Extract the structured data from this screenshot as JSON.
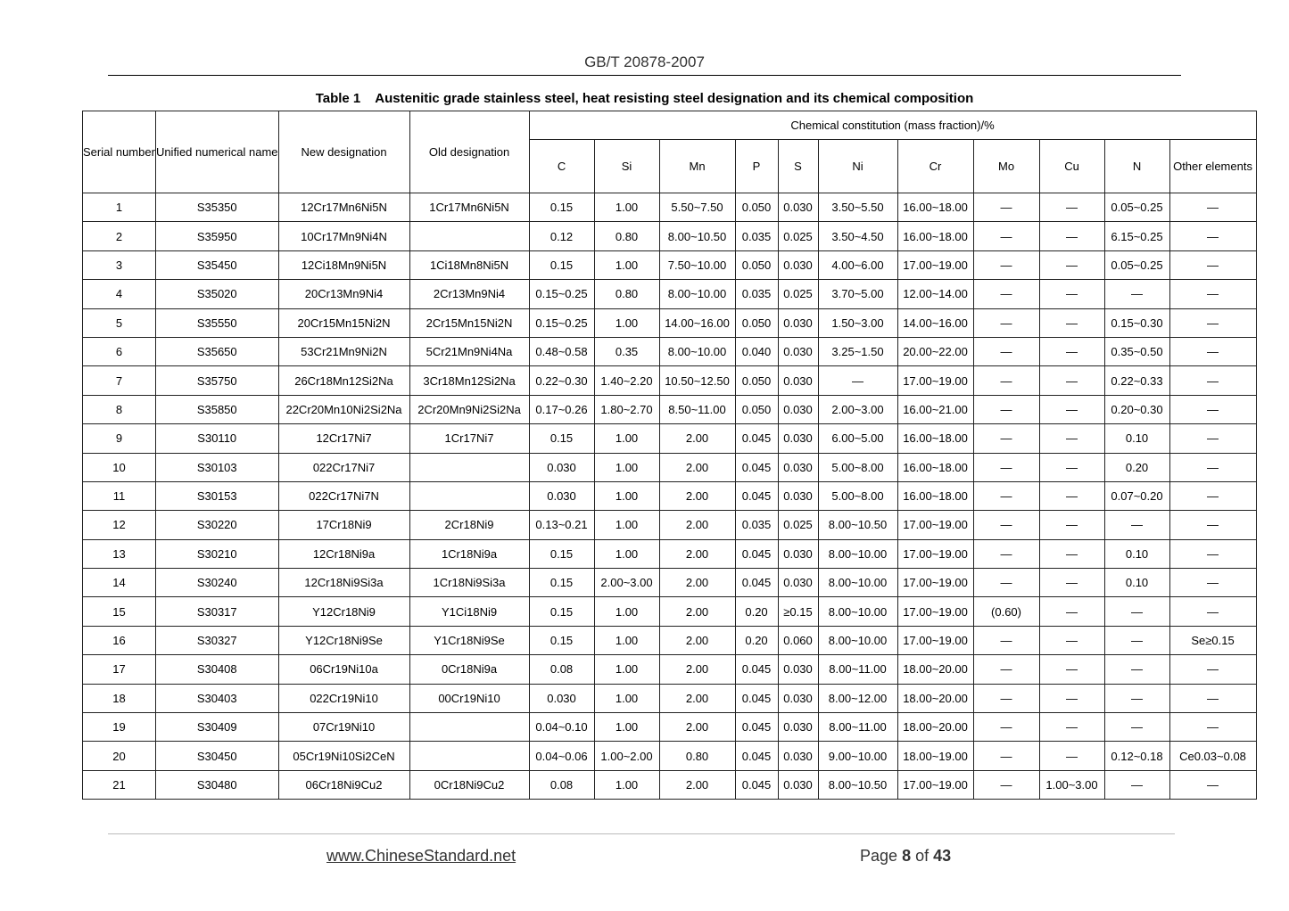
{
  "header": {
    "standard_code": "GB/T 20878-2007"
  },
  "table": {
    "caption_number": "Table 1",
    "caption_title": "Austenitic grade stainless steel, heat resisting steel designation and its chemical composition",
    "headers": {
      "serial_number": "Serial number",
      "unified_name": "Unified numerical name",
      "new_designation": "New designation",
      "old_designation": "Old designation",
      "chemical_group": "Chemical constitution (mass fraction)/%",
      "elements": [
        "C",
        "Si",
        "Mn",
        "P",
        "S",
        "Ni",
        "Cr",
        "Mo",
        "Cu",
        "N",
        "Other elements"
      ]
    },
    "rows": [
      [
        "1",
        "S35350",
        "12Cr17Mn6Ni5N",
        "1Cr17Mn6Ni5N",
        "0.15",
        "1.00",
        "5.50~7.50",
        "0.050",
        "0.030",
        "3.50~5.50",
        "16.00~18.00",
        "—",
        "—",
        "0.05~0.25",
        "—"
      ],
      [
        "2",
        "S35950",
        "10Cr17Mn9Ni4N",
        "",
        "0.12",
        "0.80",
        "8.00~10.50",
        "0.035",
        "0.025",
        "3.50~4.50",
        "16.00~18.00",
        "—",
        "—",
        "6.15~0.25",
        "—"
      ],
      [
        "3",
        "S35450",
        "12Ci18Mn9Ni5N",
        "1Ci18Mn8Ni5N",
        "0.15",
        "1.00",
        "7.50~10.00",
        "0.050",
        "0.030",
        "4.00~6.00",
        "17.00~19.00",
        "—",
        "—",
        "0.05~0.25",
        "—"
      ],
      [
        "4",
        "S35020",
        "20Cr13Mn9Ni4",
        "2Cr13Mn9Ni4",
        "0.15~0.25",
        "0.80",
        "8.00~10.00",
        "0.035",
        "0.025",
        "3.70~5.00",
        "12.00~14.00",
        "—",
        "—",
        "—",
        "—"
      ],
      [
        "5",
        "S35550",
        "20Cr15Mn15Ni2N",
        "2Cr15Mn15Ni2N",
        "0.15~0.25",
        "1.00",
        "14.00~16.00",
        "0.050",
        "0.030",
        "1.50~3.00",
        "14.00~16.00",
        "—",
        "—",
        "0.15~0.30",
        "—"
      ],
      [
        "6",
        "S35650",
        "53Cr21Mn9Ni2N",
        "5Cr21Mn9Ni4Na",
        "0.48~0.58",
        "0.35",
        "8.00~10.00",
        "0.040",
        "0.030",
        "3.25~1.50",
        "20.00~22.00",
        "—",
        "—",
        "0.35~0.50",
        "—"
      ],
      [
        "7",
        "S35750",
        "26Cr18Mn12Si2Na",
        "3Cr18Mn12Si2Na",
        "0.22~0.30",
        "1.40~2.20",
        "10.50~12.50",
        "0.050",
        "0.030",
        "—",
        "17.00~19.00",
        "—",
        "—",
        "0.22~0.33",
        "—"
      ],
      [
        "8",
        "S35850",
        "22Cr20Mn10Ni2Si2Na",
        "2Cr20Mn9Ni2Si2Na",
        "0.17~0.26",
        "1.80~2.70",
        "8.50~11.00",
        "0.050",
        "0.030",
        "2.00~3.00",
        "16.00~21.00",
        "—",
        "—",
        "0.20~0.30",
        "—"
      ],
      [
        "9",
        "S30110",
        "12Cr17Ni7",
        "1Cr17Ni7",
        "0.15",
        "1.00",
        "2.00",
        "0.045",
        "0.030",
        "6.00~5.00",
        "16.00~18.00",
        "—",
        "—",
        "0.10",
        "—"
      ],
      [
        "10",
        "S30103",
        "022Cr17Ni7",
        "",
        "0.030",
        "1.00",
        "2.00",
        "0.045",
        "0.030",
        "5.00~8.00",
        "16.00~18.00",
        "—",
        "—",
        "0.20",
        "—"
      ],
      [
        "11",
        "S30153",
        "022Cr17Ni7N",
        "",
        "0.030",
        "1.00",
        "2.00",
        "0.045",
        "0.030",
        "5.00~8.00",
        "16.00~18.00",
        "—",
        "—",
        "0.07~0.20",
        "—"
      ],
      [
        "12",
        "S30220",
        "17Cr18Ni9",
        "2Cr18Ni9",
        "0.13~0.21",
        "1.00",
        "2.00",
        "0.035",
        "0.025",
        "8.00~10.50",
        "17.00~19.00",
        "—",
        "—",
        "—",
        "—"
      ],
      [
        "13",
        "S30210",
        "12Cr18Ni9a",
        "1Cr18Ni9a",
        "0.15",
        "1.00",
        "2.00",
        "0.045",
        "0.030",
        "8.00~10.00",
        "17.00~19.00",
        "—",
        "—",
        "0.10",
        "—"
      ],
      [
        "14",
        "S30240",
        "12Cr18Ni9Si3a",
        "1Cr18Ni9Si3a",
        "0.15",
        "2.00~3.00",
        "2.00",
        "0.045",
        "0.030",
        "8.00~10.00",
        "17.00~19.00",
        "—",
        "—",
        "0.10",
        "—"
      ],
      [
        "15",
        "S30317",
        "Y12Cr18Ni9",
        "Y1Ci18Ni9",
        "0.15",
        "1.00",
        "2.00",
        "0.20",
        "≥0.15",
        "8.00~10.00",
        "17.00~19.00",
        "(0.60)",
        "—",
        "—",
        "—"
      ],
      [
        "16",
        "S30327",
        "Y12Cr18Ni9Se",
        "Y1Cr18Ni9Se",
        "0.15",
        "1.00",
        "2.00",
        "0.20",
        "0.060",
        "8.00~10.00",
        "17.00~19.00",
        "—",
        "—",
        "—",
        "Se≥0.15"
      ],
      [
        "17",
        "S30408",
        "06Cr19Ni10a",
        "0Cr18Ni9a",
        "0.08",
        "1.00",
        "2.00",
        "0.045",
        "0.030",
        "8.00~11.00",
        "18.00~20.00",
        "—",
        "—",
        "—",
        "—"
      ],
      [
        "18",
        "S30403",
        "022Cr19Ni10",
        "00Cr19Ni10",
        "0.030",
        "1.00",
        "2.00",
        "0.045",
        "0.030",
        "8.00~12.00",
        "18.00~20.00",
        "—",
        "—",
        "—",
        "—"
      ],
      [
        "19",
        "S30409",
        "07Cr19Ni10",
        "",
        "0.04~0.10",
        "1.00",
        "2.00",
        "0.045",
        "0.030",
        "8.00~11.00",
        "18.00~20.00",
        "—",
        "—",
        "—",
        "—"
      ],
      [
        "20",
        "S30450",
        "05Cr19Ni10Si2CeN",
        "",
        "0.04~0.06",
        "1.00~2.00",
        "0.80",
        "0.045",
        "0.030",
        "9.00~10.00",
        "18.00~19.00",
        "—",
        "—",
        "0.12~0.18",
        "Ce0.03~0.08"
      ],
      [
        "21",
        "S30480",
        "06Cr18Ni9Cu2",
        "0Cr18Ni9Cu2",
        "0.08",
        "1.00",
        "2.00",
        "0.045",
        "0.030",
        "8.00~10.50",
        "17.00~19.00",
        "—",
        "1.00~3.00",
        "—",
        "—"
      ]
    ]
  },
  "footer": {
    "link": "www.ChineseStandard.net",
    "page_prefix": "Page",
    "page_current": "8",
    "page_of": "of",
    "page_total": "43"
  }
}
